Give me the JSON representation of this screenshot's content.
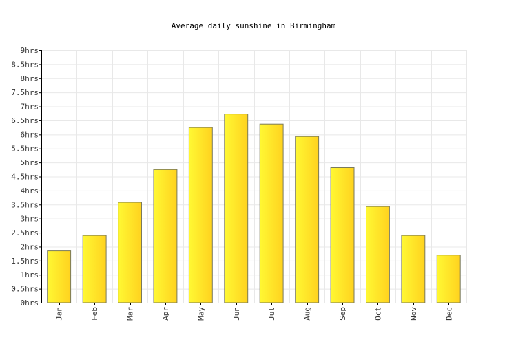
{
  "chart_data": {
    "type": "bar",
    "title": "Average daily sunshine in Birmingham",
    "xlabel": "",
    "ylabel": "",
    "categories": [
      "Jan",
      "Feb",
      "Mar",
      "Apr",
      "May",
      "Jun",
      "Jul",
      "Aug",
      "Sep",
      "Oct",
      "Nov",
      "Dec"
    ],
    "values": [
      1.85,
      2.4,
      3.58,
      4.75,
      6.25,
      6.73,
      6.37,
      5.93,
      4.82,
      3.43,
      2.4,
      1.7
    ],
    "ylim": [
      0,
      9
    ],
    "yticks": [
      "0hrs",
      "0.5hrs",
      "1hrs",
      "1.5hrs",
      "2hrs",
      "2.5hrs",
      "3hrs",
      "3.5hrs",
      "4hrs",
      "4.5hrs",
      "5hrs",
      "5.5hrs",
      "6hrs",
      "6.5hrs",
      "7hrs",
      "7.5hrs",
      "8hrs",
      "8.5hrs",
      "9hrs"
    ],
    "grid": true,
    "colors": {
      "bar_light": "#fff833",
      "bar_dark": "#ffd21f",
      "bar_stroke": "#7a7a5a",
      "grid": "#e8e8e8",
      "axis": "#000000"
    }
  }
}
